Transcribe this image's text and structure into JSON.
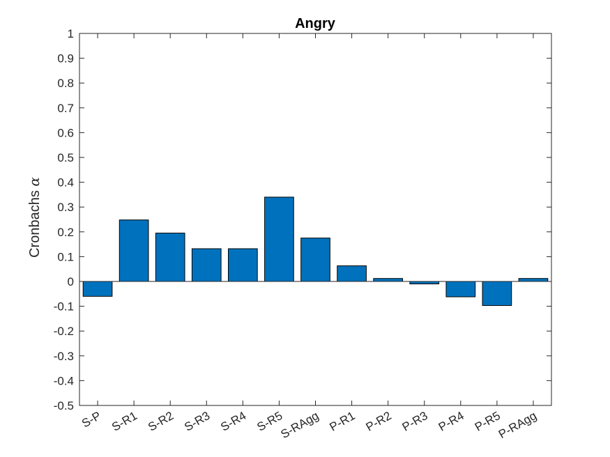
{
  "chart_data": {
    "type": "bar",
    "title": "Angry",
    "xlabel": "",
    "ylabel": "Cronbachs",
    "ylabel_symbol": "α",
    "categories": [
      "S-P",
      "S-R1",
      "S-R2",
      "S-R3",
      "S-R4",
      "S-R5",
      "S-RAgg",
      "P-R1",
      "P-R2",
      "P-R3",
      "P-R4",
      "P-R5",
      "P-RAgg"
    ],
    "values": [
      -0.06,
      0.248,
      0.195,
      0.132,
      0.132,
      0.34,
      0.175,
      0.063,
      0.012,
      -0.01,
      -0.062,
      -0.097,
      0.012
    ],
    "ylim": [
      -0.5,
      1
    ],
    "yticks": [
      -0.5,
      -0.4,
      -0.3,
      -0.2,
      -0.1,
      0,
      0.1,
      0.2,
      0.3,
      0.4,
      0.5,
      0.6,
      0.7,
      0.8,
      0.9,
      1
    ],
    "ytick_labels": [
      "-0.5",
      "-0.4",
      "-0.3",
      "-0.2",
      "-0.1",
      "0",
      "0.1",
      "0.2",
      "0.3",
      "0.4",
      "0.5",
      "0.6",
      "0.7",
      "0.8",
      "0.9",
      "1"
    ],
    "grid": false,
    "bar_color": "#0072BD",
    "bar_edge_color": "#000000",
    "axis_color": "#262626"
  }
}
